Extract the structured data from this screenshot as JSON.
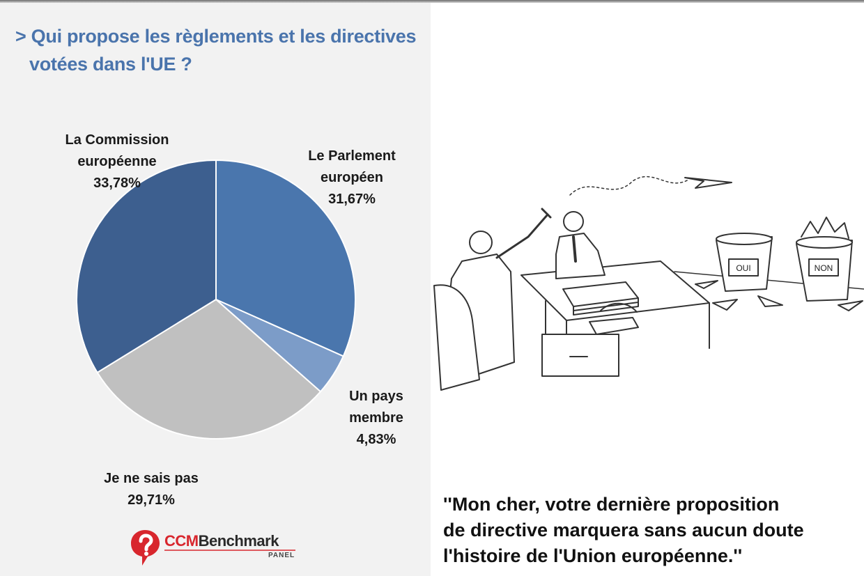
{
  "title": {
    "line1": "> Qui propose les règlements et les directives",
    "line2": "votées dans l'UE ?"
  },
  "chart_data": {
    "type": "pie",
    "title": "> Qui propose les règlements et les directives votées dans l'UE ?",
    "slices": [
      {
        "label": "Le Parlement européen",
        "value": 31.67,
        "display": "31,67%",
        "color": "#4a76ad"
      },
      {
        "label": "Un pays membre",
        "value": 4.83,
        "display": "4,83%",
        "color": "#7c9cc8"
      },
      {
        "label": "Je ne sais pas",
        "value": 29.71,
        "display": "29,71%",
        "color": "#c0c0c0"
      },
      {
        "label": "La Commission européenne",
        "value": 33.78,
        "display": "33,78%",
        "color": "#3d5f8f"
      }
    ]
  },
  "labels": {
    "parlement": {
      "text": "Le Parlement\neuropéen",
      "pct": "31,67%"
    },
    "pays": {
      "text": "Un pays\nmembre",
      "pct": "4,83%"
    },
    "nsp": {
      "text": "Je ne sais pas",
      "pct": "29,71%"
    },
    "commission": {
      "text": "La Commission\neuropéenne",
      "pct": "33,78%"
    }
  },
  "logo": {
    "ccm": "CCM",
    "benchmark": "Benchmark",
    "panel": "PANEL"
  },
  "cartoon": {
    "bin_yes": "OUI",
    "bin_no": "NON"
  },
  "caption": {
    "line1": "''Mon cher, votre dernière proposition",
    "line2": "de directive marquera sans aucun doute",
    "line3": "l'histoire de l'Union européenne.''"
  }
}
